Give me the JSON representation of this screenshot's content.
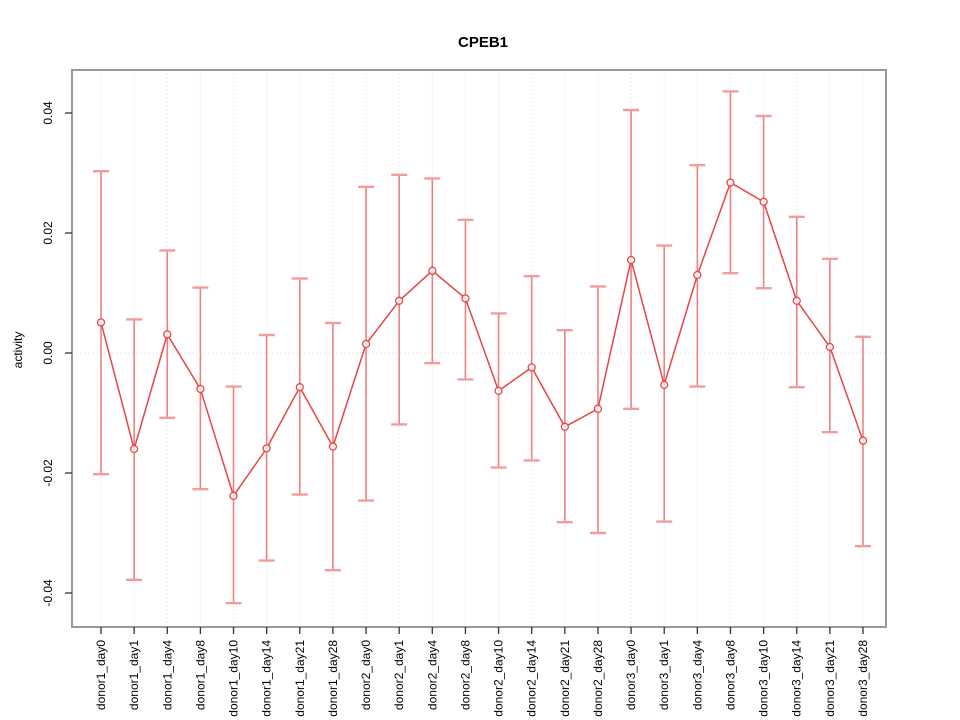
{
  "title": "CPEB1",
  "y_axis": {
    "label": "activity",
    "tick_labels": [
      "0.04",
      "0.02",
      "0.00",
      "-0.02",
      "-0.04"
    ],
    "tick_values": [
      0.04,
      0.02,
      0.0,
      -0.02,
      -0.04
    ]
  },
  "chart_data": {
    "type": "line",
    "title": "CPEB1",
    "xlabel": "",
    "ylabel": "activity",
    "ylim": [
      -0.0465,
      0.0465
    ],
    "grid": "vertical dotted gridline per category; dotted horizontal line at y=0; full box frame; no legend",
    "marker": "open-circle",
    "categories": [
      "donor1_day0",
      "donor1_day1",
      "donor1_day4",
      "donor1_day8",
      "donor1_day10",
      "donor1_day14",
      "donor1_day21",
      "donor1_day28",
      "donor2_day0",
      "donor2_day1",
      "donor2_day4",
      "donor2_day8",
      "donor2_day10",
      "donor2_day14",
      "donor2_day21",
      "donor2_day28",
      "donor3_day0",
      "donor3_day1",
      "donor3_day4",
      "donor3_day8",
      "donor3_day10",
      "donor3_day14",
      "donor3_day21",
      "donor3_day28"
    ],
    "series": [
      {
        "name": "activity",
        "values": [
          0.0051,
          -0.016,
          0.0031,
          -0.006,
          -0.0238,
          -0.0159,
          -0.0057,
          -0.0156,
          0.0015,
          0.0087,
          0.0137,
          0.0091,
          -0.0063,
          -0.0024,
          -0.0123,
          -0.0093,
          0.0155,
          -0.0053,
          0.013,
          0.0284,
          0.0252,
          0.0087,
          0.001,
          -0.0146
        ],
        "error_high": [
          0.0303,
          0.0056,
          0.0171,
          0.0109,
          -0.0056,
          0.003,
          0.0124,
          0.005,
          0.0277,
          0.0297,
          0.0291,
          0.0222,
          0.0066,
          0.0128,
          0.0038,
          0.0111,
          0.0405,
          0.0179,
          0.0313,
          0.0436,
          0.0395,
          0.0227,
          0.0157,
          0.0027
        ],
        "error_low": [
          -0.0202,
          -0.0378,
          -0.0108,
          -0.0227,
          -0.0417,
          -0.0346,
          -0.0236,
          -0.0362,
          -0.0246,
          -0.0119,
          -0.0017,
          -0.0044,
          -0.0191,
          -0.0179,
          -0.0282,
          -0.03,
          -0.0093,
          -0.0281,
          -0.0056,
          0.0133,
          0.0108,
          -0.0057,
          -0.0132,
          -0.0322
        ]
      }
    ],
    "colors": {
      "line": "#e84545",
      "marker_stroke": "#e84545",
      "error_bar": "#f08080",
      "error_cap": "#f49c9c",
      "gridline": "#dcdcdc",
      "zero_line": "#dedede",
      "frame": "#999999",
      "tick": "#333333",
      "text": "#000000"
    }
  }
}
